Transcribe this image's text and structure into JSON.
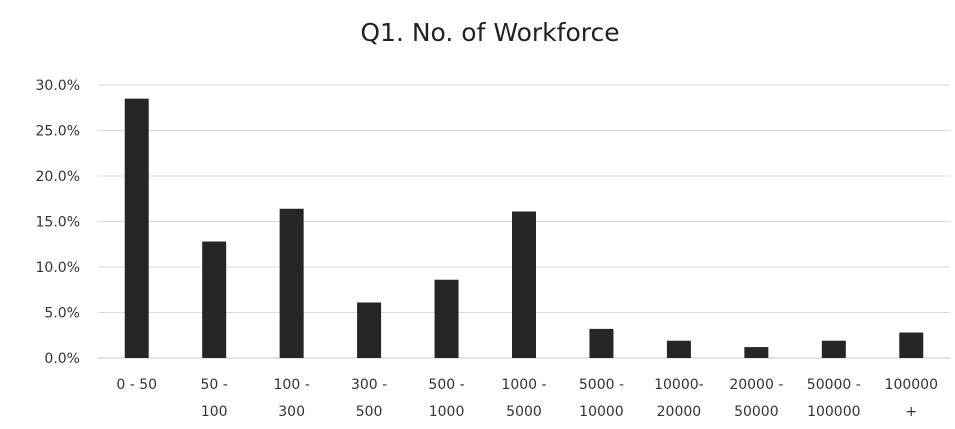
{
  "chart_data": {
    "type": "bar",
    "title": "Q1. No. of Workforce",
    "xlabel": "",
    "ylabel": "",
    "ylim": [
      0,
      30
    ],
    "yticks": [
      "0.0%",
      "5.0%",
      "10.0%",
      "15.0%",
      "20.0%",
      "25.0%",
      "30.0%"
    ],
    "ytick_values": [
      0,
      5,
      10,
      15,
      20,
      25,
      30
    ],
    "categories": [
      [
        "0 - 50"
      ],
      [
        "50 -",
        "100"
      ],
      [
        "100 -",
        "300"
      ],
      [
        "300 -",
        "500"
      ],
      [
        "500 -",
        "1000"
      ],
      [
        "1000 -",
        "5000"
      ],
      [
        "5000 -",
        "10000"
      ],
      [
        "10000-",
        "20000"
      ],
      [
        "20000 -",
        "50000"
      ],
      [
        "50000 -",
        "100000"
      ],
      [
        "100000",
        "+"
      ]
    ],
    "values": [
      28.5,
      12.8,
      16.4,
      6.1,
      8.6,
      16.1,
      3.2,
      1.9,
      1.2,
      1.9,
      2.8
    ],
    "grid": true,
    "legend": "none",
    "bar_color": "#262626"
  }
}
